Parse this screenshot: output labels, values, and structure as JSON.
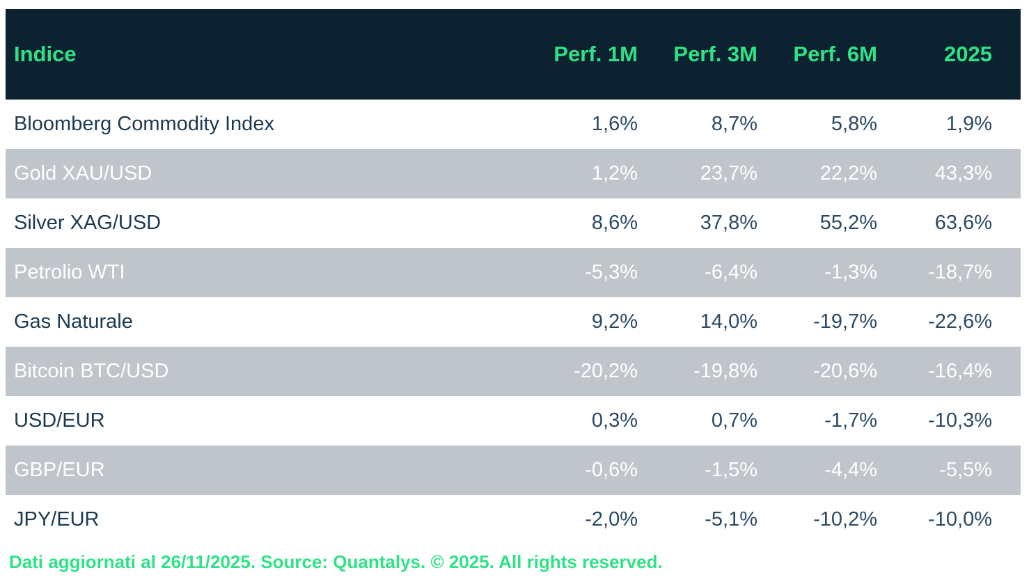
{
  "colors": {
    "header_bg": "#0c2231",
    "accent_green": "#2fe286",
    "row_alt_bg": "#c0c5cb",
    "row_text_navy": "#1b3a52",
    "value_text_navy": "#2a4965",
    "row_alt_text": "#ffffff"
  },
  "table": {
    "columns": [
      "Indice",
      "Perf. 1M",
      "Perf. 3M",
      "Perf. 6M",
      "2025"
    ],
    "rows": [
      {
        "label": "Bloomberg Commodity Index",
        "values": [
          "1,6%",
          "8,7%",
          "5,8%",
          "1,9%"
        ]
      },
      {
        "label": "Gold XAU/USD",
        "values": [
          "1,2%",
          "23,7%",
          "22,2%",
          "43,3%"
        ]
      },
      {
        "label": "Silver XAG/USD",
        "values": [
          "8,6%",
          "37,8%",
          "55,2%",
          "63,6%"
        ]
      },
      {
        "label": "Petrolio WTI",
        "values": [
          "-5,3%",
          "-6,4%",
          "-1,3%",
          "-18,7%"
        ]
      },
      {
        "label": "Gas Naturale",
        "values": [
          "9,2%",
          "14,0%",
          "-19,7%",
          "-22,6%"
        ]
      },
      {
        "label": "Bitcoin BTC/USD",
        "values": [
          "-20,2%",
          "-19,8%",
          "-20,6%",
          "-16,4%"
        ]
      },
      {
        "label": "USD/EUR",
        "values": [
          "0,3%",
          "0,7%",
          "-1,7%",
          "-10,3%"
        ]
      },
      {
        "label": "GBP/EUR",
        "values": [
          "-0,6%",
          "-1,5%",
          "-4,4%",
          "-5,5%"
        ]
      },
      {
        "label": "JPY/EUR",
        "values": [
          "-2,0%",
          "-5,1%",
          "-10,2%",
          "-10,0%"
        ]
      }
    ]
  },
  "footer": {
    "text": "Dati aggiornati al 26/11/2025. Source: Quantalys. © 2025. All rights reserved."
  },
  "chart_data": {
    "type": "table",
    "title": "Indice performance table",
    "columns": [
      "Indice",
      "Perf. 1M",
      "Perf. 3M",
      "Perf. 6M",
      "2025"
    ],
    "categories": [
      "Bloomberg Commodity Index",
      "Gold XAU/USD",
      "Silver XAG/USD",
      "Petrolio WTI",
      "Gas Naturale",
      "Bitcoin BTC/USD",
      "USD/EUR",
      "GBP/EUR",
      "JPY/EUR"
    ],
    "series": [
      {
        "name": "Perf. 1M",
        "values": [
          1.6,
          1.2,
          8.6,
          -5.3,
          9.2,
          -20.2,
          0.3,
          -0.6,
          -2.0
        ]
      },
      {
        "name": "Perf. 3M",
        "values": [
          8.7,
          23.7,
          37.8,
          -6.4,
          14.0,
          -19.8,
          0.7,
          -1.5,
          -5.1
        ]
      },
      {
        "name": "Perf. 6M",
        "values": [
          5.8,
          22.2,
          55.2,
          -1.3,
          -19.7,
          -20.6,
          -1.7,
          -4.4,
          -10.2
        ]
      },
      {
        "name": "2025",
        "values": [
          1.9,
          43.3,
          63.6,
          -18.7,
          -22.6,
          -16.4,
          -10.3,
          -5.5,
          -10.0
        ]
      }
    ],
    "units": "%",
    "decimal_separator": ",",
    "source_note": "Dati aggiornati al 26/11/2025. Source: Quantalys. © 2025. All rights reserved."
  }
}
